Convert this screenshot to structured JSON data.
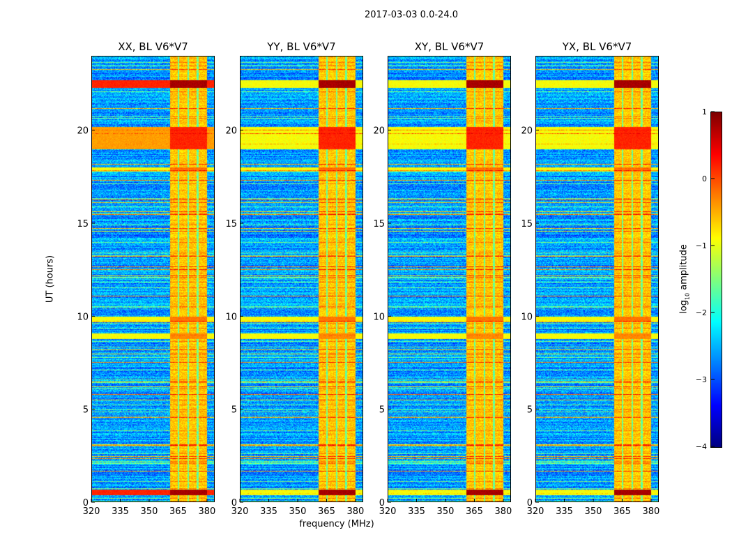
{
  "suptitle": "2017-03-03 0.0-24.0",
  "chart_data": {
    "type": "heatmap",
    "title": "2017-03-03 0.0-24.0",
    "xlabel": "frequency (MHz)",
    "ylabel": "UT (hours)",
    "xlim": [
      320,
      384
    ],
    "ylim": [
      0,
      24
    ],
    "xticks": [
      320,
      335,
      350,
      365,
      380
    ],
    "yticks": [
      0,
      5,
      10,
      15,
      20
    ],
    "colorbar": {
      "label_main": "log",
      "label_sub": "10",
      "label_rest": " amplitude",
      "range": [
        -4,
        1
      ],
      "ticks": [
        1,
        0,
        -1,
        -2,
        -3,
        -4
      ],
      "colormap": "jet"
    },
    "panels": [
      {
        "title": "XX, BL V6*V7",
        "strong_full_band": true
      },
      {
        "title": "YY, BL V6*V7",
        "strong_full_band": false
      },
      {
        "title": "XY, BL V6*V7",
        "strong_full_band": false
      },
      {
        "title": "YX, BL V6*V7",
        "strong_full_band": false
      }
    ],
    "rfi_band_mhz": [
      360.5,
      380
    ],
    "rfi_gaps_mhz": [
      365,
      370,
      375
    ],
    "background_log_amplitude": -2.6,
    "rfi_band_log_amplitude": -0.6,
    "strong_time_bands_ut": [
      [
        22.3,
        22.7,
        0.8
      ],
      [
        0.4,
        0.7,
        0.8
      ],
      [
        17.8,
        18.0,
        -0.2
      ],
      [
        9.7,
        10.0,
        -0.2
      ],
      [
        8.8,
        9.1,
        -0.3
      ],
      [
        19.0,
        20.2,
        0.2
      ]
    ]
  }
}
